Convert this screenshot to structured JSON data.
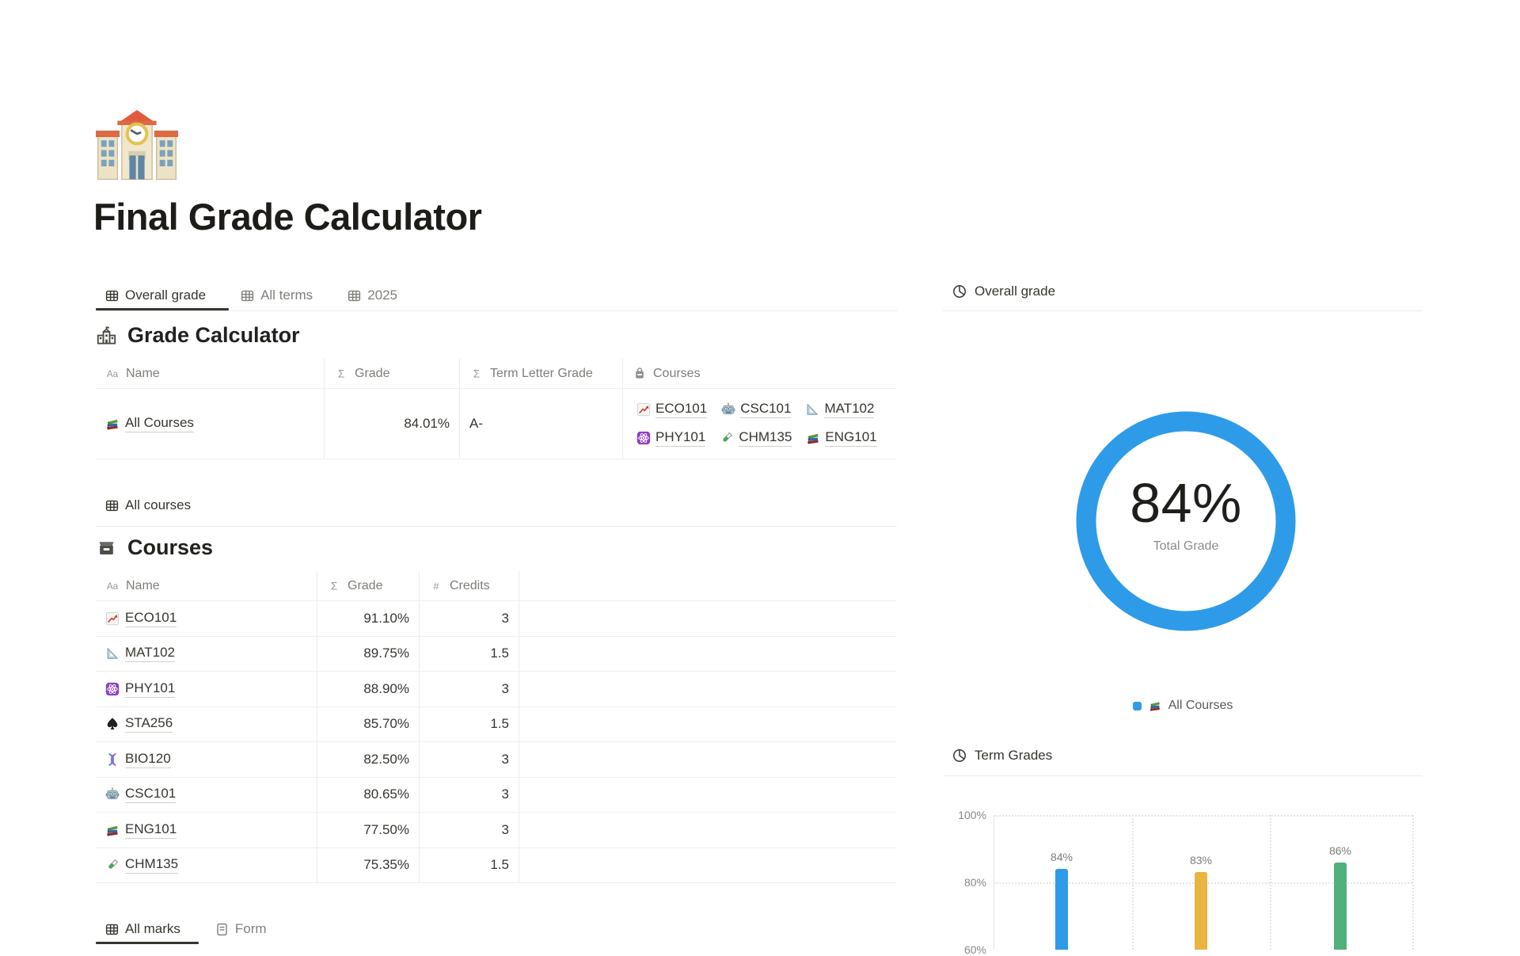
{
  "page": {
    "title": "Final Grade Calculator",
    "icon": "school-color"
  },
  "tabs_main": [
    {
      "label": "Overall grade",
      "icon": "table",
      "active": true
    },
    {
      "label": "All terms",
      "icon": "table",
      "active": false
    },
    {
      "label": "2025",
      "icon": "table",
      "active": false
    }
  ],
  "grade_calculator": {
    "title": "Grade Calculator",
    "icon": "school-mono",
    "columns": [
      {
        "icon": "title-glyph",
        "glyph": "Aa",
        "label": "Name"
      },
      {
        "icon": "formula-glyph",
        "glyph": "Σ",
        "label": "Grade"
      },
      {
        "icon": "formula-glyph",
        "glyph": "Σ",
        "label": "Term Letter Grade"
      },
      {
        "icon": "relation",
        "glyph": "",
        "label": "Courses"
      }
    ],
    "row": {
      "icon": "books",
      "name": "All Courses",
      "grade": "84.01%",
      "letter": "A-",
      "courses": [
        {
          "icon": "chart-increasing",
          "label": "ECO101"
        },
        {
          "icon": "robot",
          "label": "CSC101"
        },
        {
          "icon": "triangular-ruler",
          "label": "MAT102"
        },
        {
          "icon": "atom",
          "label": "PHY101"
        },
        {
          "icon": "test-tube",
          "label": "CHM135"
        },
        {
          "icon": "books",
          "label": "ENG101"
        }
      ]
    }
  },
  "all_courses_tab": {
    "label": "All courses",
    "icon": "table",
    "active": true
  },
  "courses": {
    "title": "Courses",
    "icon": "card-box",
    "columns": [
      {
        "icon": "title-glyph",
        "glyph": "Aa",
        "label": "Name"
      },
      {
        "icon": "formula-glyph",
        "glyph": "Σ",
        "label": "Grade"
      },
      {
        "icon": "number-glyph",
        "glyph": "#",
        "label": "Credits"
      }
    ],
    "rows": [
      {
        "icon": "chart-increasing",
        "name": "ECO101",
        "grade": "91.10%",
        "credits": "3"
      },
      {
        "icon": "triangular-ruler",
        "name": "MAT102",
        "grade": "89.75%",
        "credits": "1.5"
      },
      {
        "icon": "atom",
        "name": "PHY101",
        "grade": "88.90%",
        "credits": "3"
      },
      {
        "icon": "spade",
        "name": "STA256",
        "grade": "85.70%",
        "credits": "1.5"
      },
      {
        "icon": "dna",
        "name": "BIO120",
        "grade": "82.50%",
        "credits": "3"
      },
      {
        "icon": "robot",
        "name": "CSC101",
        "grade": "80.65%",
        "credits": "3"
      },
      {
        "icon": "books",
        "name": "ENG101",
        "grade": "77.50%",
        "credits": "3"
      },
      {
        "icon": "test-tube",
        "name": "CHM135",
        "grade": "75.35%",
        "credits": "1.5"
      }
    ]
  },
  "tabs_bottom": [
    {
      "label": "All marks",
      "icon": "table",
      "active": true
    },
    {
      "label": "Form",
      "icon": "form",
      "active": false
    }
  ],
  "right_panel": {
    "overall_tab": {
      "label": "Overall grade",
      "icon": "pie"
    },
    "term_tab": {
      "label": "Term Grades",
      "icon": "pie"
    },
    "donut": {
      "center_label": "84%",
      "sub_label": "Total Grade",
      "color": "#2E9BE8",
      "legend": {
        "icon": "books",
        "label": "All Courses"
      }
    }
  },
  "chart_data": [
    {
      "type": "donut",
      "title": "Overall grade",
      "series": [
        {
          "name": "All Courses",
          "value": 84
        }
      ],
      "center_label": "84%",
      "center_sublabel": "Total Grade",
      "colors": [
        "#2E9BE8"
      ],
      "legend_position": "bottom"
    },
    {
      "type": "bar",
      "title": "Term Grades",
      "values": [
        84,
        83,
        86
      ],
      "value_labels": [
        "84%",
        "83%",
        "86%"
      ],
      "colors": [
        "#2E9BE8",
        "#E9B43F",
        "#4FB17C"
      ],
      "yticks": [
        {
          "label": "100%",
          "pct": 100
        },
        {
          "label": "80%",
          "pct": 80
        },
        {
          "label": "60%",
          "pct": 60
        }
      ],
      "ylim": [
        60,
        100
      ],
      "grid": "dotted",
      "note": "x-axis category labels are cut off below the viewport"
    }
  ],
  "colors": {
    "accent_blue": "#2E9BE8",
    "bar_yellow": "#E9B43F",
    "bar_green": "#4FB17C",
    "text": "#37352F",
    "muted": "#7E7D78",
    "border": "#EDECE8"
  }
}
